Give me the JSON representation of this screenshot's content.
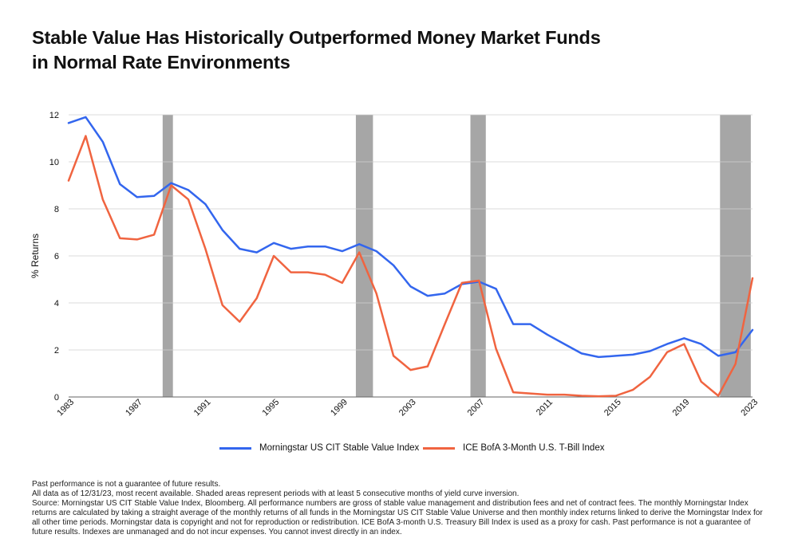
{
  "title_lines": [
    "Stable Value Has Historically Outperformed Money Market Funds",
    "in Normal Rate Environments"
  ],
  "footnotes": [
    "Past performance is not a guarantee of future results.",
    "All data as of 12/31/23, most recent available. Shaded areas represent periods with at least 5 consecutive months of yield curve inversion.",
    "Source: Morningstar US CIT Stable Value Index, Bloomberg. All performance numbers are gross of stable value management and distribution fees and net of contract fees. The monthly Morningstar Index returns are calculated by taking a straight average of the monthly returns of all funds in the Morningstar US CIT Stable Value Universe and then monthly index returns linked to derive the Morningstar Index for all other time periods. Morningstar data is copyright and not for reproduction or redistribution. ICE BofA 3-month U.S. Treasury Bill Index is used as a proxy for cash. Past performance is not a guarantee of future results. Indexes are unmanaged and do not incur expenses. You cannot invest directly in an index."
  ],
  "chart_data": {
    "type": "line",
    "ylabel": "% Returns",
    "xlim": [
      1983,
      2023
    ],
    "ylim": [
      0,
      12
    ],
    "yticks": [
      0,
      2,
      4,
      6,
      8,
      10,
      12
    ],
    "xticks": [
      1983,
      1987,
      1991,
      1995,
      1999,
      2003,
      2007,
      2011,
      2015,
      2019,
      2023
    ],
    "grid": "horizontal",
    "legend_position": "bottom",
    "shaded_periods": [
      [
        1988.5,
        1989.1
      ],
      [
        1999.8,
        2000.8
      ],
      [
        2006.5,
        2007.4
      ],
      [
        2021.1,
        2022.9
      ]
    ],
    "shaded_color": "#a6a6a6",
    "series": [
      {
        "name": "Morningstar US CIT Stable Value Index",
        "color": "#3366ee",
        "x": [
          1983,
          1984,
          1985,
          1986,
          1987,
          1988,
          1989,
          1990,
          1991,
          1992,
          1993,
          1994,
          1995,
          1996,
          1997,
          1998,
          1999,
          2000,
          2001,
          2002,
          2003,
          2004,
          2005,
          2006,
          2007,
          2008,
          2009,
          2010,
          2011,
          2012,
          2013,
          2014,
          2015,
          2016,
          2017,
          2018,
          2019,
          2020,
          2021,
          2022,
          2023
        ],
        "values": [
          11.65,
          11.9,
          10.85,
          9.05,
          8.5,
          8.55,
          9.1,
          8.8,
          8.2,
          7.1,
          6.3,
          6.15,
          6.55,
          6.3,
          6.4,
          6.4,
          6.2,
          6.5,
          6.2,
          5.6,
          4.7,
          4.3,
          4.4,
          4.8,
          4.9,
          4.6,
          3.1,
          3.1,
          2.65,
          2.25,
          1.85,
          1.7,
          1.75,
          1.8,
          1.95,
          2.25,
          2.5,
          2.25,
          1.75,
          1.9,
          2.85
        ]
      },
      {
        "name": "ICE BofA 3-Month U.S. T-Bill Index",
        "color": "#f06440",
        "x": [
          1983,
          1984,
          1985,
          1986,
          1987,
          1988,
          1989,
          1990,
          1991,
          1992,
          1993,
          1994,
          1995,
          1996,
          1997,
          1998,
          1999,
          2000,
          2001,
          2002,
          2003,
          2004,
          2005,
          2006,
          2007,
          2008,
          2009,
          2010,
          2011,
          2012,
          2013,
          2014,
          2015,
          2016,
          2017,
          2018,
          2019,
          2020,
          2021,
          2022,
          2023
        ],
        "values": [
          9.2,
          11.1,
          8.4,
          6.75,
          6.7,
          6.9,
          9.0,
          8.4,
          6.3,
          3.9,
          3.2,
          4.2,
          6.0,
          5.3,
          5.3,
          5.2,
          4.85,
          6.15,
          4.4,
          1.75,
          1.15,
          1.3,
          3.1,
          4.85,
          4.95,
          2.05,
          0.2,
          0.15,
          0.1,
          0.1,
          0.05,
          0.03,
          0.05,
          0.3,
          0.85,
          1.9,
          2.25,
          0.65,
          0.05,
          1.4,
          5.05
        ]
      }
    ]
  }
}
